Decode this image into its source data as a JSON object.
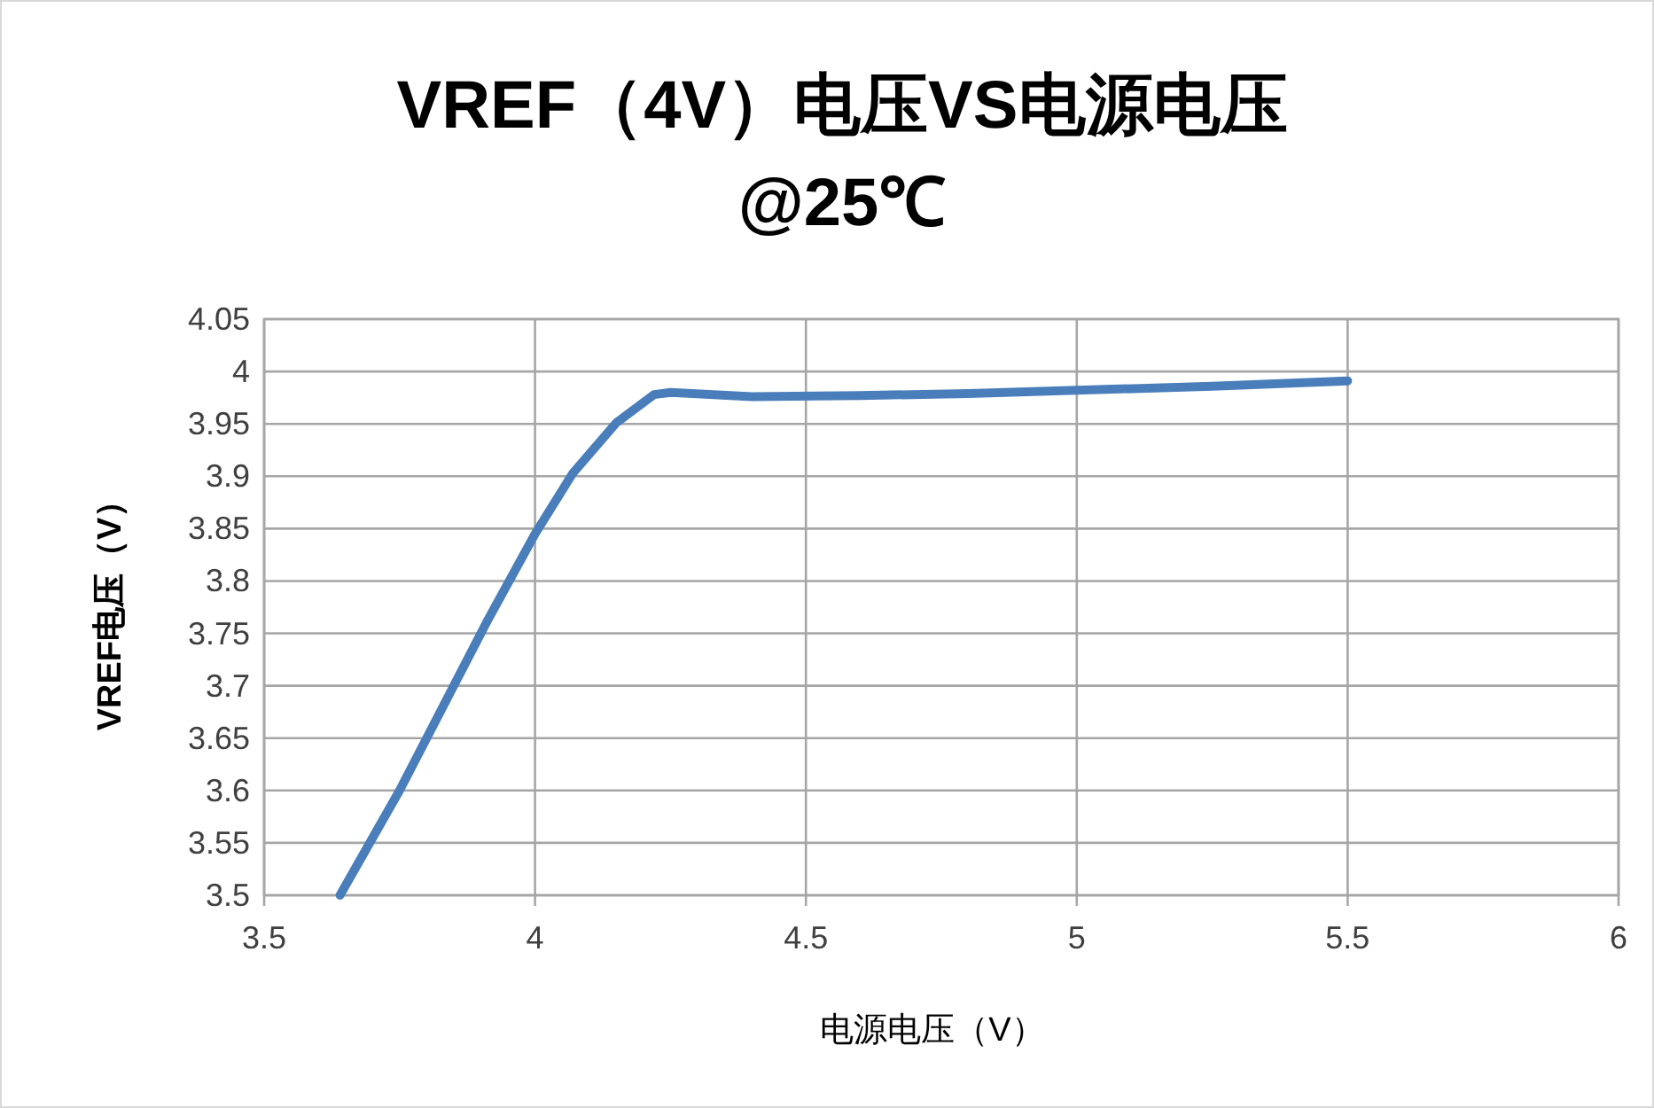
{
  "chart_data": {
    "type": "line",
    "title": "VREF（4V）电压VS电源电压\n@25℃",
    "xlabel": "电源电压（V）",
    "ylabel": "VREF电压（V）",
    "x": [
      3.64,
      3.75,
      3.91,
      4.0,
      4.07,
      4.15,
      4.22,
      4.25,
      4.4,
      4.6,
      4.8,
      5.0,
      5.25,
      5.5
    ],
    "series": [
      {
        "color": "#4a7ebb",
        "values": [
          3.5,
          3.6,
          3.76,
          3.845,
          3.903,
          3.951,
          3.978,
          3.98,
          3.976,
          3.977,
          3.979,
          3.982,
          3.986,
          3.991
        ]
      }
    ],
    "xlim": [
      3.5,
      6
    ],
    "xticks": [
      3.5,
      4,
      4.5,
      5,
      5.5,
      6
    ],
    "ylim": [
      3.5,
      4.05
    ],
    "yticks": [
      3.5,
      3.55,
      3.6,
      3.65,
      3.7,
      3.75,
      3.8,
      3.85,
      3.9,
      3.95,
      4,
      4.05
    ],
    "grid": true,
    "marker": "none",
    "line_style": "solid"
  }
}
